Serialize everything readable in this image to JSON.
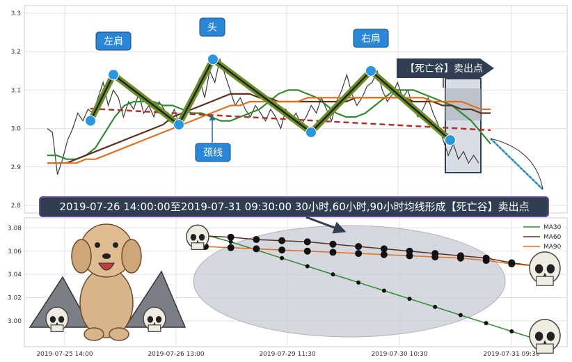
{
  "chart_data": [
    {
      "type": "line",
      "title": "",
      "ylim": [
        2.78,
        3.32
      ],
      "yticks": [
        "2.8",
        "2.9",
        "3.0",
        "3.1",
        "3.2",
        "3.3"
      ],
      "grid": true,
      "series": [
        {
          "color": "#3a3a3a",
          "values": [
            3.0,
            2.99,
            2.88,
            2.92,
            2.97,
            3.0,
            3.04,
            3.02,
            3.05,
            3.04,
            3.08,
            3.12,
            3.06,
            3.1,
            3.08,
            3.03,
            3.07,
            3.05,
            3.09,
            3.04,
            3.06,
            3.03,
            3.07,
            3.05,
            3.02,
            3.05,
            3.01,
            3.04,
            3.07,
            3.1,
            3.13,
            3.08,
            3.15,
            3.12,
            3.18,
            3.14,
            3.1,
            3.06,
            3.08,
            3.05,
            3.03,
            3.06,
            3.04,
            3.02,
            3.05,
            3.03,
            3.0,
            3.05,
            3.02,
            3.04,
            3.01,
            3.03,
            3.06,
            3.04,
            3.08,
            3.05,
            3.02,
            3.07,
            3.1,
            3.14,
            3.09,
            3.06,
            3.08,
            3.11,
            3.12,
            3.15,
            3.1,
            3.07,
            3.09,
            3.12,
            3.08,
            3.1,
            3.06,
            3.03,
            3.05,
            3.08,
            3.04,
            3.01,
            2.97,
            2.93,
            2.96,
            2.92,
            2.94,
            2.91,
            2.93,
            2.91
          ]
        },
        {
          "name": "MA30",
          "color": "#2e8b2e",
          "values": [
            2.93,
            2.93,
            2.92,
            2.92,
            2.93,
            2.95,
            2.99,
            3.03,
            3.06,
            3.07,
            3.07,
            3.07,
            3.06,
            3.06,
            3.05,
            3.04,
            3.04,
            3.03,
            3.02,
            3.02,
            3.03,
            3.04,
            3.05,
            3.07,
            3.09,
            3.1,
            3.1,
            3.09,
            3.08,
            3.06,
            3.04,
            3.03,
            3.03,
            3.04,
            3.06,
            3.08,
            3.1,
            3.1,
            3.1,
            3.09,
            3.08,
            3.07,
            3.06,
            3.04,
            3.02,
            2.99,
            2.96
          ]
        },
        {
          "name": "MA60",
          "color": "#5a3020",
          "values": [
            2.91,
            2.91,
            2.91,
            2.92,
            2.93,
            2.94,
            2.95,
            2.96,
            2.97,
            2.98,
            2.99,
            3.0,
            3.01,
            3.03,
            3.04,
            3.05,
            3.06,
            3.07,
            3.08,
            3.09,
            3.09,
            3.09,
            3.08,
            3.08,
            3.07,
            3.07,
            3.07,
            3.07,
            3.07,
            3.07,
            3.07,
            3.07,
            3.08,
            3.08,
            3.08,
            3.08,
            3.08,
            3.08,
            3.07,
            3.07,
            3.07,
            3.06,
            3.06,
            3.05,
            3.05,
            3.04,
            3.04
          ]
        },
        {
          "name": "MA90",
          "color": "#e07020",
          "values": [
            2.91,
            2.91,
            2.91,
            2.91,
            2.92,
            2.92,
            2.93,
            2.94,
            2.95,
            2.96,
            2.97,
            2.98,
            2.99,
            3.0,
            3.01,
            3.02,
            3.03,
            3.04,
            3.05,
            3.06,
            3.06,
            3.07,
            3.07,
            3.07,
            3.07,
            3.07,
            3.07,
            3.08,
            3.08,
            3.08,
            3.08,
            3.08,
            3.08,
            3.08,
            3.08,
            3.08,
            3.08,
            3.08,
            3.08,
            3.08,
            3.07,
            3.07,
            3.07,
            3.07,
            3.06,
            3.05,
            3.05
          ]
        }
      ],
      "pattern_points": [
        {
          "date_index": 0,
          "y": 3.02
        },
        {
          "date_index": 1,
          "y": 3.14
        },
        {
          "date_index": 2,
          "y": 3.01
        },
        {
          "date_index": 3,
          "y": 3.18
        },
        {
          "date_index": 4,
          "y": 2.99
        },
        {
          "date_index": 5,
          "y": 3.15
        },
        {
          "date_index": 6,
          "y": 2.97
        }
      ],
      "annotations": {
        "left_shoulder": "左肩",
        "head": "头",
        "right_shoulder": "右肩",
        "neckline": "颈线",
        "sell_point": "【死亡谷】卖出点",
        "banner": "2019-07-26 14:00:00至2019-07-31 09:30:00 30小时,60小时,90小时均线形成【死亡谷】卖出点"
      }
    },
    {
      "type": "line",
      "title": "",
      "ylim": [
        2.985,
        3.085
      ],
      "yticks": [
        "3.00",
        "3.02",
        "3.04",
        "3.06",
        "3.08"
      ],
      "xticks": [
        "2019-07-25 14:00",
        "2019-07-26 13:00",
        "2019-07-29 11:30",
        "2019-07-30 10:30",
        "2019-07-31 09:30"
      ],
      "grid": true,
      "legend_position": "top-right",
      "series": [
        {
          "name": "MA30",
          "color": "#2e8b2e",
          "values": [
            3.074,
            3.068,
            3.061,
            3.054,
            3.047,
            3.04,
            3.033,
            3.026,
            3.019,
            3.012,
            3.005,
            2.998,
            2.991,
            2.984
          ]
        },
        {
          "name": "MA60",
          "color": "#5a3020",
          "values": [
            3.073,
            3.072,
            3.07,
            3.069,
            3.068,
            3.066,
            3.064,
            3.062,
            3.06,
            3.058,
            3.056,
            3.054,
            3.05,
            3.047
          ]
        },
        {
          "name": "MA90",
          "color": "#e07020",
          "values": [
            3.064,
            3.063,
            3.062,
            3.061,
            3.06,
            3.059,
            3.058,
            3.057,
            3.056,
            3.055,
            3.054,
            3.052,
            3.049,
            3.047
          ]
        }
      ]
    }
  ]
}
